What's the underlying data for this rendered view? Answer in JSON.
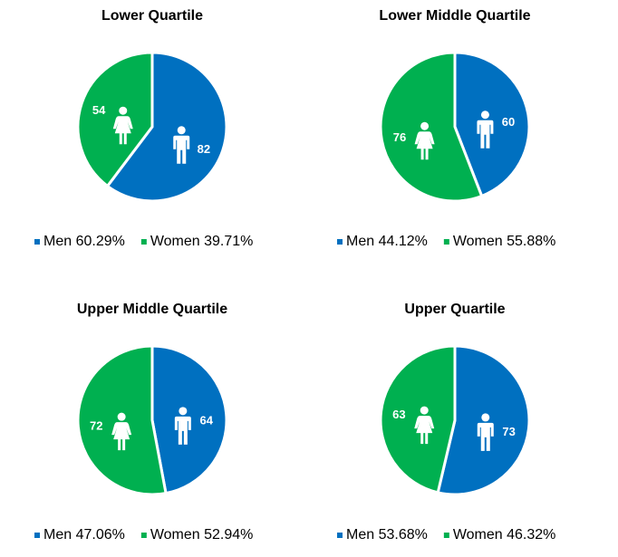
{
  "colors": {
    "men": "#0070C0",
    "women": "#00B050"
  },
  "icons": {
    "men": "man-icon",
    "women": "woman-icon"
  },
  "chart_data": [
    {
      "type": "pie",
      "title": "Lower Quartile",
      "labels": [
        "Men",
        "Women"
      ],
      "values": [
        82,
        54
      ],
      "legend": [
        "Men 60.29%",
        "Women 39.71%"
      ],
      "legend_position": "bottom"
    },
    {
      "type": "pie",
      "title": "Lower Middle Quartile",
      "labels": [
        "Men",
        "Women"
      ],
      "values": [
        60,
        76
      ],
      "legend": [
        "Men 44.12%",
        "Women 55.88%"
      ],
      "legend_position": "bottom"
    },
    {
      "type": "pie",
      "title": "Upper Middle Quartile",
      "labels": [
        "Men",
        "Women"
      ],
      "values": [
        64,
        72
      ],
      "legend": [
        "Men 47.06%",
        "Women 52.94%"
      ],
      "legend_position": "bottom"
    },
    {
      "type": "pie",
      "title": "Upper Quartile",
      "labels": [
        "Men",
        "Women"
      ],
      "values": [
        73,
        63
      ],
      "legend": [
        "Men 53.68%",
        "Women 46.32%"
      ],
      "legend_position": "bottom"
    }
  ]
}
